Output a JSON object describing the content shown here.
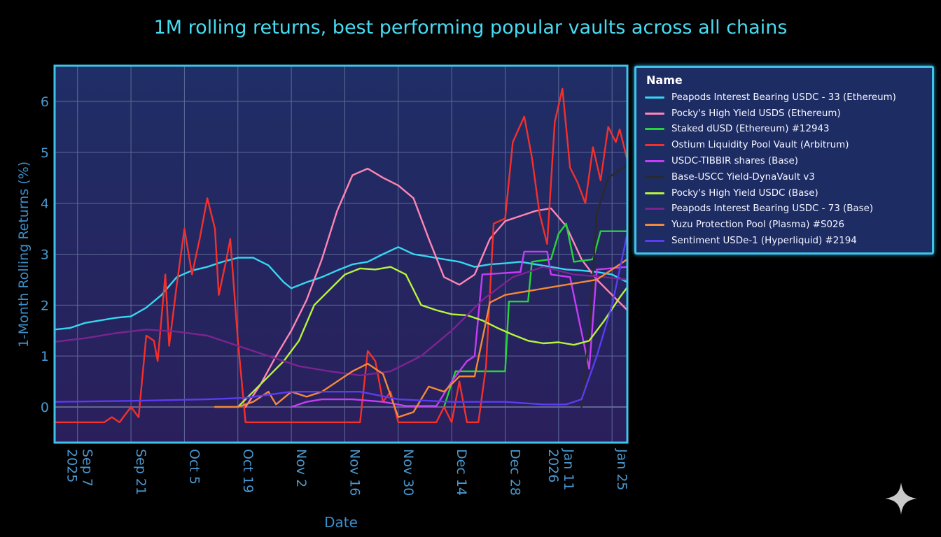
{
  "chart_data": {
    "type": "line",
    "title": "1M rolling returns, best performing popular vaults across all chains",
    "xlabel": "Date",
    "ylabel": "1-Month Rolling Returns (%)",
    "xlim": [
      "2025-09-01",
      "2026-01-29"
    ],
    "ylim": [
      -0.7,
      6.7
    ],
    "grid": true,
    "legend_title": "Name",
    "legend_position": "right",
    "xticks": [
      {
        "date": "2025-09-07",
        "label": "Sep 7",
        "sublabel": "2025"
      },
      {
        "date": "2025-09-21",
        "label": "Sep 21"
      },
      {
        "date": "2025-10-05",
        "label": "Oct 5"
      },
      {
        "date": "2025-10-19",
        "label": "Oct 19"
      },
      {
        "date": "2025-11-02",
        "label": "Nov 2"
      },
      {
        "date": "2025-11-16",
        "label": "Nov 16"
      },
      {
        "date": "2025-11-30",
        "label": "Nov 30"
      },
      {
        "date": "2025-12-14",
        "label": "Dec 14"
      },
      {
        "date": "2025-12-28",
        "label": "Dec 28"
      },
      {
        "date": "2026-01-11",
        "label": "Jan 11",
        "sublabel": "2026"
      },
      {
        "date": "2026-01-25",
        "label": "Jan 25"
      }
    ],
    "yticks": [
      0,
      1,
      2,
      3,
      4,
      5,
      6
    ],
    "series": [
      {
        "name": "Peapods Interest Bearing USDC - 33 (Ethereum)",
        "color": "#35d7f0",
        "points": [
          [
            "2025-09-01",
            1.52
          ],
          [
            "2025-09-05",
            1.55
          ],
          [
            "2025-09-09",
            1.65
          ],
          [
            "2025-09-13",
            1.7
          ],
          [
            "2025-09-17",
            1.75
          ],
          [
            "2025-09-21",
            1.78
          ],
          [
            "2025-09-25",
            1.95
          ],
          [
            "2025-09-29",
            2.2
          ],
          [
            "2025-10-03",
            2.55
          ],
          [
            "2025-10-07",
            2.68
          ],
          [
            "2025-10-11",
            2.75
          ],
          [
            "2025-10-15",
            2.85
          ],
          [
            "2025-10-19",
            2.93
          ],
          [
            "2025-10-23",
            2.93
          ],
          [
            "2025-10-27",
            2.78
          ],
          [
            "2025-10-31",
            2.45
          ],
          [
            "2025-11-02",
            2.33
          ],
          [
            "2025-11-06",
            2.45
          ],
          [
            "2025-11-10",
            2.55
          ],
          [
            "2025-11-14",
            2.68
          ],
          [
            "2025-11-18",
            2.8
          ],
          [
            "2025-11-22",
            2.85
          ],
          [
            "2025-11-26",
            3.0
          ],
          [
            "2025-11-30",
            3.14
          ],
          [
            "2025-12-04",
            3.0
          ],
          [
            "2025-12-08",
            2.95
          ],
          [
            "2025-12-12",
            2.9
          ],
          [
            "2025-12-16",
            2.85
          ],
          [
            "2025-12-20",
            2.75
          ],
          [
            "2025-12-24",
            2.8
          ],
          [
            "2025-12-28",
            2.82
          ],
          [
            "2026-01-01",
            2.85
          ],
          [
            "2026-01-05",
            2.8
          ],
          [
            "2026-01-09",
            2.75
          ],
          [
            "2026-01-13",
            2.7
          ],
          [
            "2026-01-17",
            2.68
          ],
          [
            "2026-01-21",
            2.65
          ],
          [
            "2026-01-25",
            2.6
          ],
          [
            "2026-01-29",
            2.45
          ]
        ]
      },
      {
        "name": "Pocky's High Yield USDS (Ethereum)",
        "color": "#ff86b4",
        "points": [
          [
            "2025-10-21",
            0.0
          ],
          [
            "2025-10-25",
            0.45
          ],
          [
            "2025-10-29",
            1.0
          ],
          [
            "2025-11-02",
            1.5
          ],
          [
            "2025-11-06",
            2.1
          ],
          [
            "2025-11-10",
            2.9
          ],
          [
            "2025-11-14",
            3.85
          ],
          [
            "2025-11-18",
            4.55
          ],
          [
            "2025-11-22",
            4.68
          ],
          [
            "2025-11-26",
            4.5
          ],
          [
            "2025-11-30",
            4.35
          ],
          [
            "2025-12-04",
            4.1
          ],
          [
            "2025-12-08",
            3.3
          ],
          [
            "2025-12-12",
            2.55
          ],
          [
            "2025-12-16",
            2.4
          ],
          [
            "2025-12-20",
            2.6
          ],
          [
            "2025-12-24",
            3.3
          ],
          [
            "2025-12-28",
            3.65
          ],
          [
            "2026-01-01",
            3.75
          ],
          [
            "2026-01-05",
            3.85
          ],
          [
            "2026-01-09",
            3.9
          ],
          [
            "2026-01-13",
            3.55
          ],
          [
            "2026-01-17",
            2.9
          ],
          [
            "2026-01-21",
            2.5
          ],
          [
            "2026-01-25",
            2.2
          ],
          [
            "2026-01-29",
            1.9
          ]
        ]
      },
      {
        "name": "Staked dUSD (Ethereum) #12943",
        "color": "#27d43c",
        "points": [
          [
            "2025-12-12",
            0.0
          ],
          [
            "2025-12-15",
            0.7
          ],
          [
            "2025-12-28",
            0.7
          ],
          [
            "2025-12-29",
            2.07
          ],
          [
            "2026-01-03",
            2.07
          ],
          [
            "2026-01-04",
            2.85
          ],
          [
            "2026-01-09",
            2.9
          ],
          [
            "2026-01-11",
            3.4
          ],
          [
            "2026-01-13",
            3.6
          ],
          [
            "2026-01-15",
            2.85
          ],
          [
            "2026-01-20",
            2.9
          ],
          [
            "2026-01-22",
            3.45
          ],
          [
            "2026-01-29",
            3.45
          ]
        ]
      },
      {
        "name": "Ostium Liquidity Pool Vault (Arbitrum)",
        "color": "#f2302c",
        "points": [
          [
            "2025-09-01",
            -0.3
          ],
          [
            "2025-09-14",
            -0.3
          ],
          [
            "2025-09-16",
            -0.2
          ],
          [
            "2025-09-18",
            -0.3
          ],
          [
            "2025-09-21",
            0.0
          ],
          [
            "2025-09-23",
            -0.2
          ],
          [
            "2025-09-25",
            1.4
          ],
          [
            "2025-09-27",
            1.3
          ],
          [
            "2025-09-28",
            0.9
          ],
          [
            "2025-09-30",
            2.6
          ],
          [
            "2025-10-01",
            1.2
          ],
          [
            "2025-10-03",
            2.4
          ],
          [
            "2025-10-05",
            3.5
          ],
          [
            "2025-10-07",
            2.6
          ],
          [
            "2025-10-09",
            3.3
          ],
          [
            "2025-10-11",
            4.1
          ],
          [
            "2025-10-13",
            3.5
          ],
          [
            "2025-10-14",
            2.2
          ],
          [
            "2025-10-16",
            2.9
          ],
          [
            "2025-10-17",
            3.3
          ],
          [
            "2025-10-19",
            1.3
          ],
          [
            "2025-10-21",
            -0.3
          ],
          [
            "2025-11-20",
            -0.3
          ],
          [
            "2025-11-22",
            1.1
          ],
          [
            "2025-11-24",
            0.9
          ],
          [
            "2025-11-26",
            0.1
          ],
          [
            "2025-11-28",
            0.3
          ],
          [
            "2025-11-30",
            -0.3
          ],
          [
            "2025-12-10",
            -0.3
          ],
          [
            "2025-12-12",
            0.0
          ],
          [
            "2025-12-14",
            -0.3
          ],
          [
            "2025-12-16",
            0.5
          ],
          [
            "2025-12-18",
            -0.3
          ],
          [
            "2025-12-21",
            -0.3
          ],
          [
            "2025-12-23",
            0.8
          ],
          [
            "2025-12-25",
            3.6
          ],
          [
            "2025-12-28",
            3.7
          ],
          [
            "2025-12-30",
            5.2
          ],
          [
            "2026-01-02",
            5.7
          ],
          [
            "2026-01-04",
            4.9
          ],
          [
            "2026-01-06",
            3.8
          ],
          [
            "2026-01-08",
            3.2
          ],
          [
            "2026-01-10",
            5.6
          ],
          [
            "2026-01-12",
            6.25
          ],
          [
            "2026-01-14",
            4.7
          ],
          [
            "2026-01-16",
            4.4
          ],
          [
            "2026-01-18",
            4.0
          ],
          [
            "2026-01-20",
            5.1
          ],
          [
            "2026-01-22",
            4.45
          ],
          [
            "2026-01-24",
            5.5
          ],
          [
            "2026-01-26",
            5.2
          ],
          [
            "2026-01-27",
            5.45
          ],
          [
            "2026-01-29",
            4.85
          ]
        ]
      },
      {
        "name": "USDC-TIBBIR shares (Base)",
        "color": "#c63cf7",
        "points": [
          [
            "2025-11-02",
            0.0
          ],
          [
            "2025-11-06",
            0.1
          ],
          [
            "2025-11-10",
            0.15
          ],
          [
            "2025-11-18",
            0.15
          ],
          [
            "2025-11-26",
            0.1
          ],
          [
            "2025-12-02",
            0.02
          ],
          [
            "2025-12-10",
            0.02
          ],
          [
            "2025-12-14",
            0.5
          ],
          [
            "2025-12-18",
            0.9
          ],
          [
            "2025-12-20",
            1.0
          ],
          [
            "2025-12-22",
            2.6
          ],
          [
            "2025-12-26",
            2.62
          ],
          [
            "2026-01-01",
            2.65
          ],
          [
            "2026-01-02",
            3.05
          ],
          [
            "2026-01-08",
            3.05
          ],
          [
            "2026-01-09",
            2.6
          ],
          [
            "2026-01-14",
            2.55
          ],
          [
            "2026-01-19",
            0.75
          ],
          [
            "2026-01-21",
            2.7
          ],
          [
            "2026-01-29",
            2.75
          ]
        ]
      },
      {
        "name": "Base-USCC Yield-DynaVault v3",
        "color": "#2a2a2a",
        "points": [
          [
            "2026-01-17",
            0.0
          ],
          [
            "2026-01-19",
            1.5
          ],
          [
            "2026-01-21",
            3.8
          ],
          [
            "2026-01-24",
            4.5
          ],
          [
            "2026-01-29",
            4.75
          ]
        ]
      },
      {
        "name": "Pocky's High Yield USDC (Base)",
        "color": "#b6f53b",
        "points": [
          [
            "2025-10-19",
            0.0
          ],
          [
            "2025-10-23",
            0.3
          ],
          [
            "2025-10-27",
            0.6
          ],
          [
            "2025-10-31",
            0.9
          ],
          [
            "2025-11-04",
            1.3
          ],
          [
            "2025-11-08",
            2.0
          ],
          [
            "2025-11-12",
            2.3
          ],
          [
            "2025-11-16",
            2.6
          ],
          [
            "2025-11-20",
            2.72
          ],
          [
            "2025-11-24",
            2.7
          ],
          [
            "2025-11-28",
            2.75
          ],
          [
            "2025-12-02",
            2.6
          ],
          [
            "2025-12-06",
            2.0
          ],
          [
            "2025-12-10",
            1.9
          ],
          [
            "2025-12-14",
            1.82
          ],
          [
            "2025-12-18",
            1.8
          ],
          [
            "2025-12-22",
            1.7
          ],
          [
            "2025-12-26",
            1.55
          ],
          [
            "2025-12-30",
            1.42
          ],
          [
            "2026-01-03",
            1.3
          ],
          [
            "2026-01-07",
            1.25
          ],
          [
            "2026-01-11",
            1.27
          ],
          [
            "2026-01-15",
            1.22
          ],
          [
            "2026-01-19",
            1.3
          ],
          [
            "2026-01-23",
            1.7
          ],
          [
            "2026-01-27",
            2.15
          ],
          [
            "2026-01-29",
            2.35
          ]
        ]
      },
      {
        "name": "Peapods Interest Bearing USDC - 73 (Base)",
        "color": "#7b2490",
        "points": [
          [
            "2025-09-01",
            1.28
          ],
          [
            "2025-09-09",
            1.35
          ],
          [
            "2025-09-17",
            1.45
          ],
          [
            "2025-09-25",
            1.52
          ],
          [
            "2025-10-03",
            1.48
          ],
          [
            "2025-10-11",
            1.4
          ],
          [
            "2025-10-19",
            1.2
          ],
          [
            "2025-10-27",
            1.0
          ],
          [
            "2025-11-04",
            0.8
          ],
          [
            "2025-11-12",
            0.7
          ],
          [
            "2025-11-20",
            0.62
          ],
          [
            "2025-11-28",
            0.7
          ],
          [
            "2025-12-06",
            1.0
          ],
          [
            "2025-12-14",
            1.5
          ],
          [
            "2025-12-22",
            2.1
          ],
          [
            "2025-12-30",
            2.55
          ],
          [
            "2026-01-07",
            2.75
          ],
          [
            "2026-01-15",
            2.6
          ],
          [
            "2026-01-23",
            2.55
          ],
          [
            "2026-01-29",
            2.5
          ]
        ]
      },
      {
        "name": "Yuzu Protection Pool (Plasma) #S026",
        "color": "#f38a39",
        "points": [
          [
            "2025-10-13",
            0.0
          ],
          [
            "2025-10-19",
            0.0
          ],
          [
            "2025-10-23",
            0.1
          ],
          [
            "2025-10-27",
            0.3
          ],
          [
            "2025-10-29",
            0.05
          ],
          [
            "2025-11-02",
            0.3
          ],
          [
            "2025-11-06",
            0.2
          ],
          [
            "2025-11-10",
            0.3
          ],
          [
            "2025-11-14",
            0.5
          ],
          [
            "2025-11-18",
            0.7
          ],
          [
            "2025-11-22",
            0.85
          ],
          [
            "2025-11-26",
            0.65
          ],
          [
            "2025-11-30",
            -0.2
          ],
          [
            "2025-12-04",
            -0.1
          ],
          [
            "2025-12-08",
            0.4
          ],
          [
            "2025-12-12",
            0.3
          ],
          [
            "2025-12-16",
            0.6
          ],
          [
            "2025-12-20",
            0.6
          ],
          [
            "2025-12-24",
            2.05
          ],
          [
            "2025-12-28",
            2.2
          ],
          [
            "2026-01-01",
            2.25
          ],
          [
            "2026-01-05",
            2.3
          ],
          [
            "2026-01-09",
            2.35
          ],
          [
            "2026-01-13",
            2.4
          ],
          [
            "2026-01-17",
            2.45
          ],
          [
            "2026-01-21",
            2.5
          ],
          [
            "2026-01-25",
            2.7
          ],
          [
            "2026-01-29",
            2.9
          ]
        ]
      },
      {
        "name": "Sentiment USDe-1 (Hyperliquid) #2194",
        "color": "#5a3cf2",
        "points": [
          [
            "2025-09-01",
            0.1
          ],
          [
            "2025-09-21",
            0.12
          ],
          [
            "2025-10-11",
            0.15
          ],
          [
            "2025-10-21",
            0.18
          ],
          [
            "2025-11-02",
            0.3
          ],
          [
            "2025-11-20",
            0.3
          ],
          [
            "2025-11-30",
            0.15
          ],
          [
            "2025-12-14",
            0.1
          ],
          [
            "2025-12-28",
            0.1
          ],
          [
            "2026-01-07",
            0.05
          ],
          [
            "2026-01-13",
            0.05
          ],
          [
            "2026-01-17",
            0.15
          ],
          [
            "2026-01-21",
            1.0
          ],
          [
            "2026-01-25",
            2.0
          ],
          [
            "2026-01-29",
            3.4
          ]
        ]
      }
    ]
  }
}
